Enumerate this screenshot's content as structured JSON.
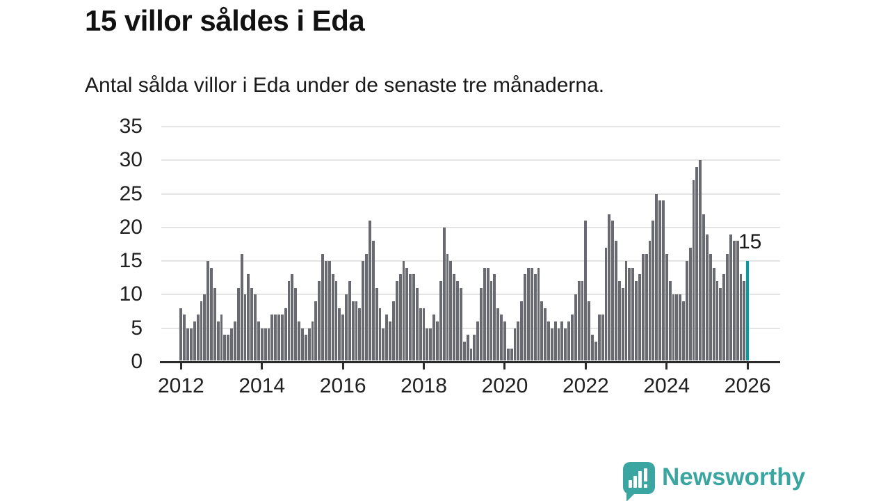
{
  "header": {
    "title": "15 villor såldes i Eda",
    "subtitle": "Antal sålda villor i Eda under de senaste tre månaderna."
  },
  "annotation": {
    "last_value_label": "15"
  },
  "branding": {
    "name": "Newsworthy",
    "icon": "speech-bubble-bar-chart-icon",
    "color": "#3BA6A1"
  },
  "colors": {
    "bar": "#696971",
    "highlight": "#009E9E",
    "axis": "#2b2b2b",
    "grid": "#e4e4e4",
    "text": "#1a1a1a"
  },
  "chart_data": {
    "type": "bar",
    "title": "15 villor såldes i Eda",
    "subtitle": "Antal sålda villor i Eda under de senaste tre månaderna.",
    "start_month": "2012-01",
    "end_month": "2026-01",
    "frequency": "monthly (rolling 3-month total)",
    "x_tick_labels": [
      "2012",
      "2014",
      "2016",
      "2018",
      "2020",
      "2022",
      "2024",
      "2026"
    ],
    "y_ticks": [
      0,
      5,
      10,
      15,
      20,
      25,
      30,
      35
    ],
    "ylim": [
      0,
      35
    ],
    "grid": true,
    "legend": "none",
    "highlight_last": true,
    "last_value": 15,
    "values": [
      8,
      7,
      5,
      5,
      6,
      7,
      9,
      10,
      15,
      14,
      11,
      6,
      7,
      4,
      4,
      5,
      6,
      11,
      16,
      10,
      13,
      11,
      10,
      6,
      5,
      5,
      5,
      7,
      7,
      7,
      7,
      8,
      12,
      13,
      11,
      6,
      5,
      4,
      5,
      6,
      9,
      12,
      16,
      15,
      15,
      13,
      12,
      8,
      7,
      10,
      12,
      9,
      9,
      8,
      15,
      16,
      21,
      18,
      11,
      8,
      5,
      7,
      6,
      9,
      12,
      13,
      15,
      14,
      13,
      13,
      11,
      8,
      8,
      5,
      5,
      7,
      6,
      12,
      20,
      16,
      15,
      13,
      12,
      11,
      3,
      4,
      2,
      4,
      6,
      11,
      14,
      14,
      12,
      13,
      8,
      7,
      6,
      2,
      2,
      5,
      6,
      9,
      13,
      14,
      14,
      13,
      14,
      9,
      8,
      6,
      5,
      6,
      5,
      6,
      5,
      6,
      7,
      10,
      12,
      12,
      21,
      9,
      4,
      3,
      7,
      7,
      17,
      22,
      21,
      18,
      12,
      11,
      15,
      14,
      14,
      12,
      13,
      16,
      16,
      18,
      21,
      25,
      24,
      24,
      16,
      12,
      10,
      10,
      10,
      9,
      15,
      17,
      27,
      29,
      30,
      22,
      19,
      16,
      14,
      12,
      11,
      13,
      16,
      19,
      18,
      18,
      13,
      12,
      15
    ]
  }
}
